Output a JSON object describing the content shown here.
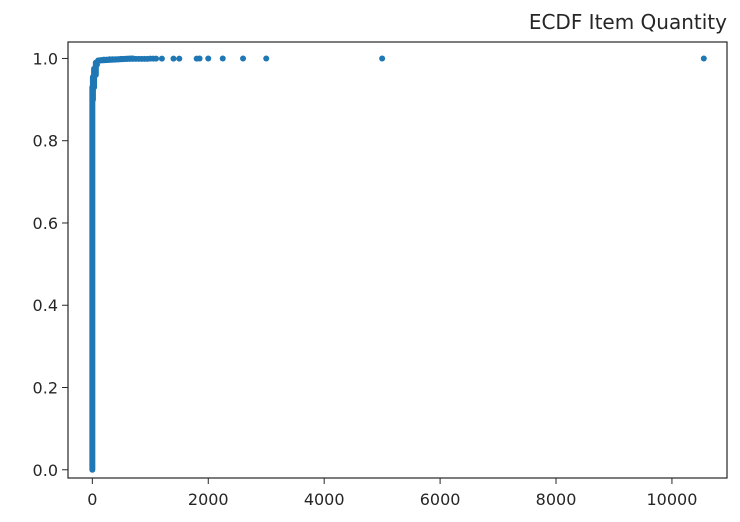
{
  "chart_data": {
    "type": "scatter",
    "title": "ECDF Item Quantity",
    "xlabel": "",
    "ylabel": "",
    "xlim": [
      -420,
      10950
    ],
    "ylim": [
      -0.02,
      1.04
    ],
    "xticks": [
      0,
      2000,
      4000,
      6000,
      8000,
      10000
    ],
    "yticks": [
      0.0,
      0.2,
      0.4,
      0.6,
      0.8,
      1.0
    ],
    "xtick_labels": [
      "0",
      "2000",
      "4000",
      "6000",
      "8000",
      "10000"
    ],
    "ytick_labels": [
      "0.0",
      "0.2",
      "0.4",
      "0.6",
      "0.8",
      "1.0"
    ],
    "grid": false,
    "legend": "none",
    "marker_color": "#1f77b4",
    "series": [
      {
        "dense_segments": [
          {
            "x": [
              0,
              0
            ],
            "y": [
              0.0,
              0.93
            ]
          },
          {
            "x": [
              10,
              10
            ],
            "y": [
              0.9,
              0.955
            ]
          },
          {
            "x": [
              30,
              30
            ],
            "y": [
              0.93,
              0.975
            ]
          },
          {
            "x": [
              60,
              60
            ],
            "y": [
              0.96,
              0.99
            ]
          },
          {
            "x": [
              100,
              700
            ],
            "y": [
              0.995,
              1.0
            ]
          }
        ],
        "points": {
          "x": [
            5,
            20,
            40,
            50,
            80,
            120,
            150,
            200,
            250,
            300,
            350,
            400,
            450,
            500,
            550,
            600,
            650,
            700,
            750,
            800,
            850,
            900,
            950,
            1000,
            1050,
            1100,
            1200,
            1400,
            1500,
            1800,
            1850,
            2000,
            2250,
            2600,
            3000,
            5000,
            10550
          ],
          "y": [
            0.92,
            0.95,
            0.97,
            0.975,
            0.985,
            0.995,
            0.996,
            0.997,
            0.997,
            0.998,
            0.998,
            0.998,
            0.998,
            0.999,
            0.999,
            0.999,
            0.999,
            0.999,
            0.999,
            0.999,
            0.999,
            0.999,
            0.999,
            0.9995,
            0.9995,
            0.9995,
            0.9996,
            0.9996,
            0.9997,
            0.9997,
            0.9998,
            0.9998,
            0.9998,
            0.9999,
            0.9999,
            0.99995,
            1.0
          ]
        }
      }
    ]
  }
}
